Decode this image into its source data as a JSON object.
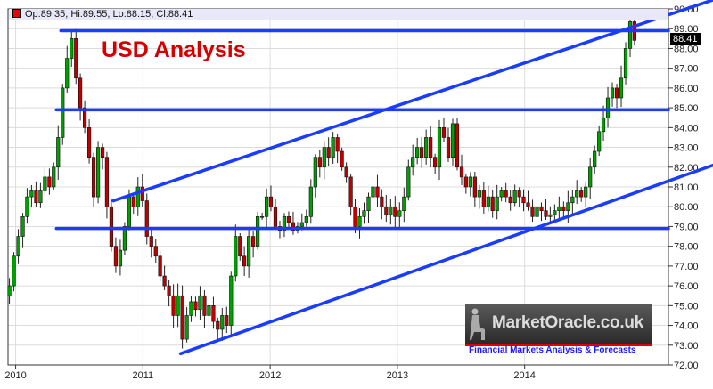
{
  "header": {
    "ohlc_text": "Op:89.35, Hi:89.55, Lo:88.15, Cl:88.41",
    "last_price_tag": "88.41"
  },
  "annotation": {
    "title": "USD Analysis",
    "color": "#d40000"
  },
  "logo": {
    "name": "MarketOracle.co.uk",
    "tagline": "Financial Markets Analysis & Forecasts"
  },
  "colors": {
    "up": "#00a000",
    "down": "#c00000",
    "trendline": "#1a3cff",
    "grid": "#dcdcdc"
  },
  "chart_data": {
    "type": "candlestick",
    "xlim": [
      2009.94,
      2015.13
    ],
    "ylim": [
      72,
      90
    ],
    "x_ticks": [
      {
        "v": 2010,
        "label": "2010"
      },
      {
        "v": 2011,
        "label": "2011"
      },
      {
        "v": 2012,
        "label": "2012"
      },
      {
        "v": 2013,
        "label": "2013"
      },
      {
        "v": 2014,
        "label": "2014"
      }
    ],
    "y_ticks": [
      "90.00",
      "89.00",
      "88.00",
      "87.00",
      "86.00",
      "85.00",
      "84.00",
      "83.00",
      "82.00",
      "81.00",
      "80.00",
      "79.00",
      "78.00",
      "77.00",
      "76.00",
      "75.00",
      "74.00",
      "73.00",
      "72.00"
    ],
    "grid": true,
    "last_candle": {
      "open": 89.35,
      "high": 89.55,
      "low": 88.15,
      "close": 88.41
    },
    "closes": [
      [
        2009.951,
        76.0
      ],
      [
        2009.986,
        77.5
      ],
      [
        2010.021,
        78.5
      ],
      [
        2010.056,
        79.5
      ],
      [
        2010.09,
        80.5
      ],
      [
        2010.125,
        80.8
      ],
      [
        2010.16,
        80.2
      ],
      [
        2010.195,
        80.8
      ],
      [
        2010.23,
        81.5
      ],
      [
        2010.265,
        81.0
      ],
      [
        2010.299,
        82.0
      ],
      [
        2010.334,
        83.5
      ],
      [
        2010.369,
        86.0
      ],
      [
        2010.404,
        87.5
      ],
      [
        2010.439,
        88.5
      ],
      [
        2010.474,
        86.5
      ],
      [
        2010.508,
        85.0
      ],
      [
        2010.543,
        84.0
      ],
      [
        2010.578,
        82.5
      ],
      [
        2010.613,
        80.5
      ],
      [
        2010.648,
        83.0
      ],
      [
        2010.683,
        82.5
      ],
      [
        2010.717,
        80.0
      ],
      [
        2010.752,
        78.0
      ],
      [
        2010.787,
        77.0
      ],
      [
        2010.822,
        77.8
      ],
      [
        2010.857,
        79.0
      ],
      [
        2010.892,
        80.5
      ],
      [
        2010.926,
        80.0
      ],
      [
        2010.961,
        81.0
      ],
      [
        2010.996,
        80.3
      ],
      [
        2011.031,
        78.5
      ],
      [
        2011.066,
        78.0
      ],
      [
        2011.101,
        77.5
      ],
      [
        2011.135,
        76.5
      ],
      [
        2011.17,
        76.0
      ],
      [
        2011.205,
        75.5
      ],
      [
        2011.24,
        74.5
      ],
      [
        2011.275,
        75.5
      ],
      [
        2011.31,
        73.3
      ],
      [
        2011.345,
        74.5
      ],
      [
        2011.379,
        75.2
      ],
      [
        2011.414,
        74.8
      ],
      [
        2011.449,
        75.5
      ],
      [
        2011.484,
        74.5
      ],
      [
        2011.519,
        75.0
      ],
      [
        2011.554,
        74.2
      ],
      [
        2011.588,
        73.8
      ],
      [
        2011.623,
        74.5
      ],
      [
        2011.658,
        74.0
      ],
      [
        2011.693,
        76.5
      ],
      [
        2011.728,
        78.5
      ],
      [
        2011.763,
        77.5
      ],
      [
        2011.797,
        77.0
      ],
      [
        2011.832,
        78.5
      ],
      [
        2011.867,
        78.0
      ],
      [
        2011.902,
        79.5
      ],
      [
        2011.937,
        79.5
      ],
      [
        2011.972,
        80.5
      ],
      [
        2012.006,
        80.0
      ],
      [
        2012.041,
        79.0
      ],
      [
        2012.076,
        78.8
      ],
      [
        2012.111,
        79.5
      ],
      [
        2012.146,
        79.2
      ],
      [
        2012.181,
        78.8
      ],
      [
        2012.216,
        79.0
      ],
      [
        2012.25,
        79.2
      ],
      [
        2012.285,
        79.5
      ],
      [
        2012.32,
        81.0
      ],
      [
        2012.355,
        82.5
      ],
      [
        2012.39,
        82.0
      ],
      [
        2012.425,
        83.0
      ],
      [
        2012.459,
        82.5
      ],
      [
        2012.494,
        83.5
      ],
      [
        2012.529,
        82.8
      ],
      [
        2012.564,
        82.0
      ],
      [
        2012.599,
        81.5
      ],
      [
        2012.634,
        80.0
      ],
      [
        2012.668,
        79.0
      ],
      [
        2012.703,
        79.5
      ],
      [
        2012.738,
        79.8
      ],
      [
        2012.773,
        80.5
      ],
      [
        2012.808,
        81.0
      ],
      [
        2012.843,
        80.5
      ],
      [
        2012.877,
        80.0
      ],
      [
        2012.912,
        79.6
      ],
      [
        2012.947,
        80.0
      ],
      [
        2012.982,
        79.5
      ],
      [
        2013.017,
        79.8
      ],
      [
        2013.052,
        80.5
      ],
      [
        2013.087,
        82.0
      ],
      [
        2013.121,
        82.5
      ],
      [
        2013.156,
        83.0
      ],
      [
        2013.191,
        82.5
      ],
      [
        2013.226,
        83.5
      ],
      [
        2013.261,
        82.5
      ],
      [
        2013.296,
        82.0
      ],
      [
        2013.33,
        84.0
      ],
      [
        2013.365,
        83.5
      ],
      [
        2013.4,
        82.5
      ],
      [
        2013.435,
        84.2
      ],
      [
        2013.47,
        82.0
      ],
      [
        2013.505,
        81.5
      ],
      [
        2013.539,
        81.0
      ],
      [
        2013.574,
        81.5
      ],
      [
        2013.609,
        80.5
      ],
      [
        2013.644,
        80.8
      ],
      [
        2013.679,
        80.0
      ],
      [
        2013.714,
        80.5
      ],
      [
        2013.748,
        79.8
      ],
      [
        2013.783,
        80.5
      ],
      [
        2013.818,
        80.8
      ],
      [
        2013.853,
        80.5
      ],
      [
        2013.888,
        80.2
      ],
      [
        2013.923,
        80.8
      ],
      [
        2013.958,
        80.5
      ],
      [
        2013.992,
        80.2
      ],
      [
        2014.027,
        80.0
      ],
      [
        2014.062,
        79.5
      ],
      [
        2014.097,
        80.0
      ],
      [
        2014.132,
        79.8
      ],
      [
        2014.167,
        79.5
      ],
      [
        2014.201,
        79.6
      ],
      [
        2014.236,
        79.8
      ],
      [
        2014.271,
        80.0
      ],
      [
        2014.306,
        79.8
      ],
      [
        2014.341,
        80.2
      ],
      [
        2014.376,
        80.5
      ],
      [
        2014.41,
        80.8
      ],
      [
        2014.445,
        80.5
      ],
      [
        2014.48,
        81.0
      ],
      [
        2014.515,
        82.0
      ],
      [
        2014.55,
        82.8
      ],
      [
        2014.585,
        83.8
      ],
      [
        2014.619,
        84.5
      ],
      [
        2014.654,
        85.5
      ],
      [
        2014.689,
        86.0
      ],
      [
        2014.724,
        85.5
      ],
      [
        2014.759,
        86.5
      ],
      [
        2014.794,
        88.0
      ],
      [
        2014.829,
        89.35
      ],
      [
        2014.863,
        88.41
      ]
    ],
    "trendlines": [
      {
        "kind": "resistance",
        "from": [
          2010.355,
          88.9
        ],
        "to": [
          2015.13,
          88.9
        ]
      },
      {
        "kind": "horizontal",
        "from": [
          2010.32,
          84.9
        ],
        "to": [
          2015.13,
          84.9
        ]
      },
      {
        "kind": "support",
        "from": [
          2010.32,
          78.9
        ],
        "to": [
          2015.13,
          78.9
        ]
      },
      {
        "kind": "channel-upper",
        "from": [
          2010.767,
          80.3
        ],
        "to": [
          2015.13,
          89.7
        ]
      },
      {
        "kind": "channel-lower",
        "from": [
          2011.296,
          72.57
        ],
        "to": [
          2015.13,
          81.3
        ]
      }
    ]
  }
}
